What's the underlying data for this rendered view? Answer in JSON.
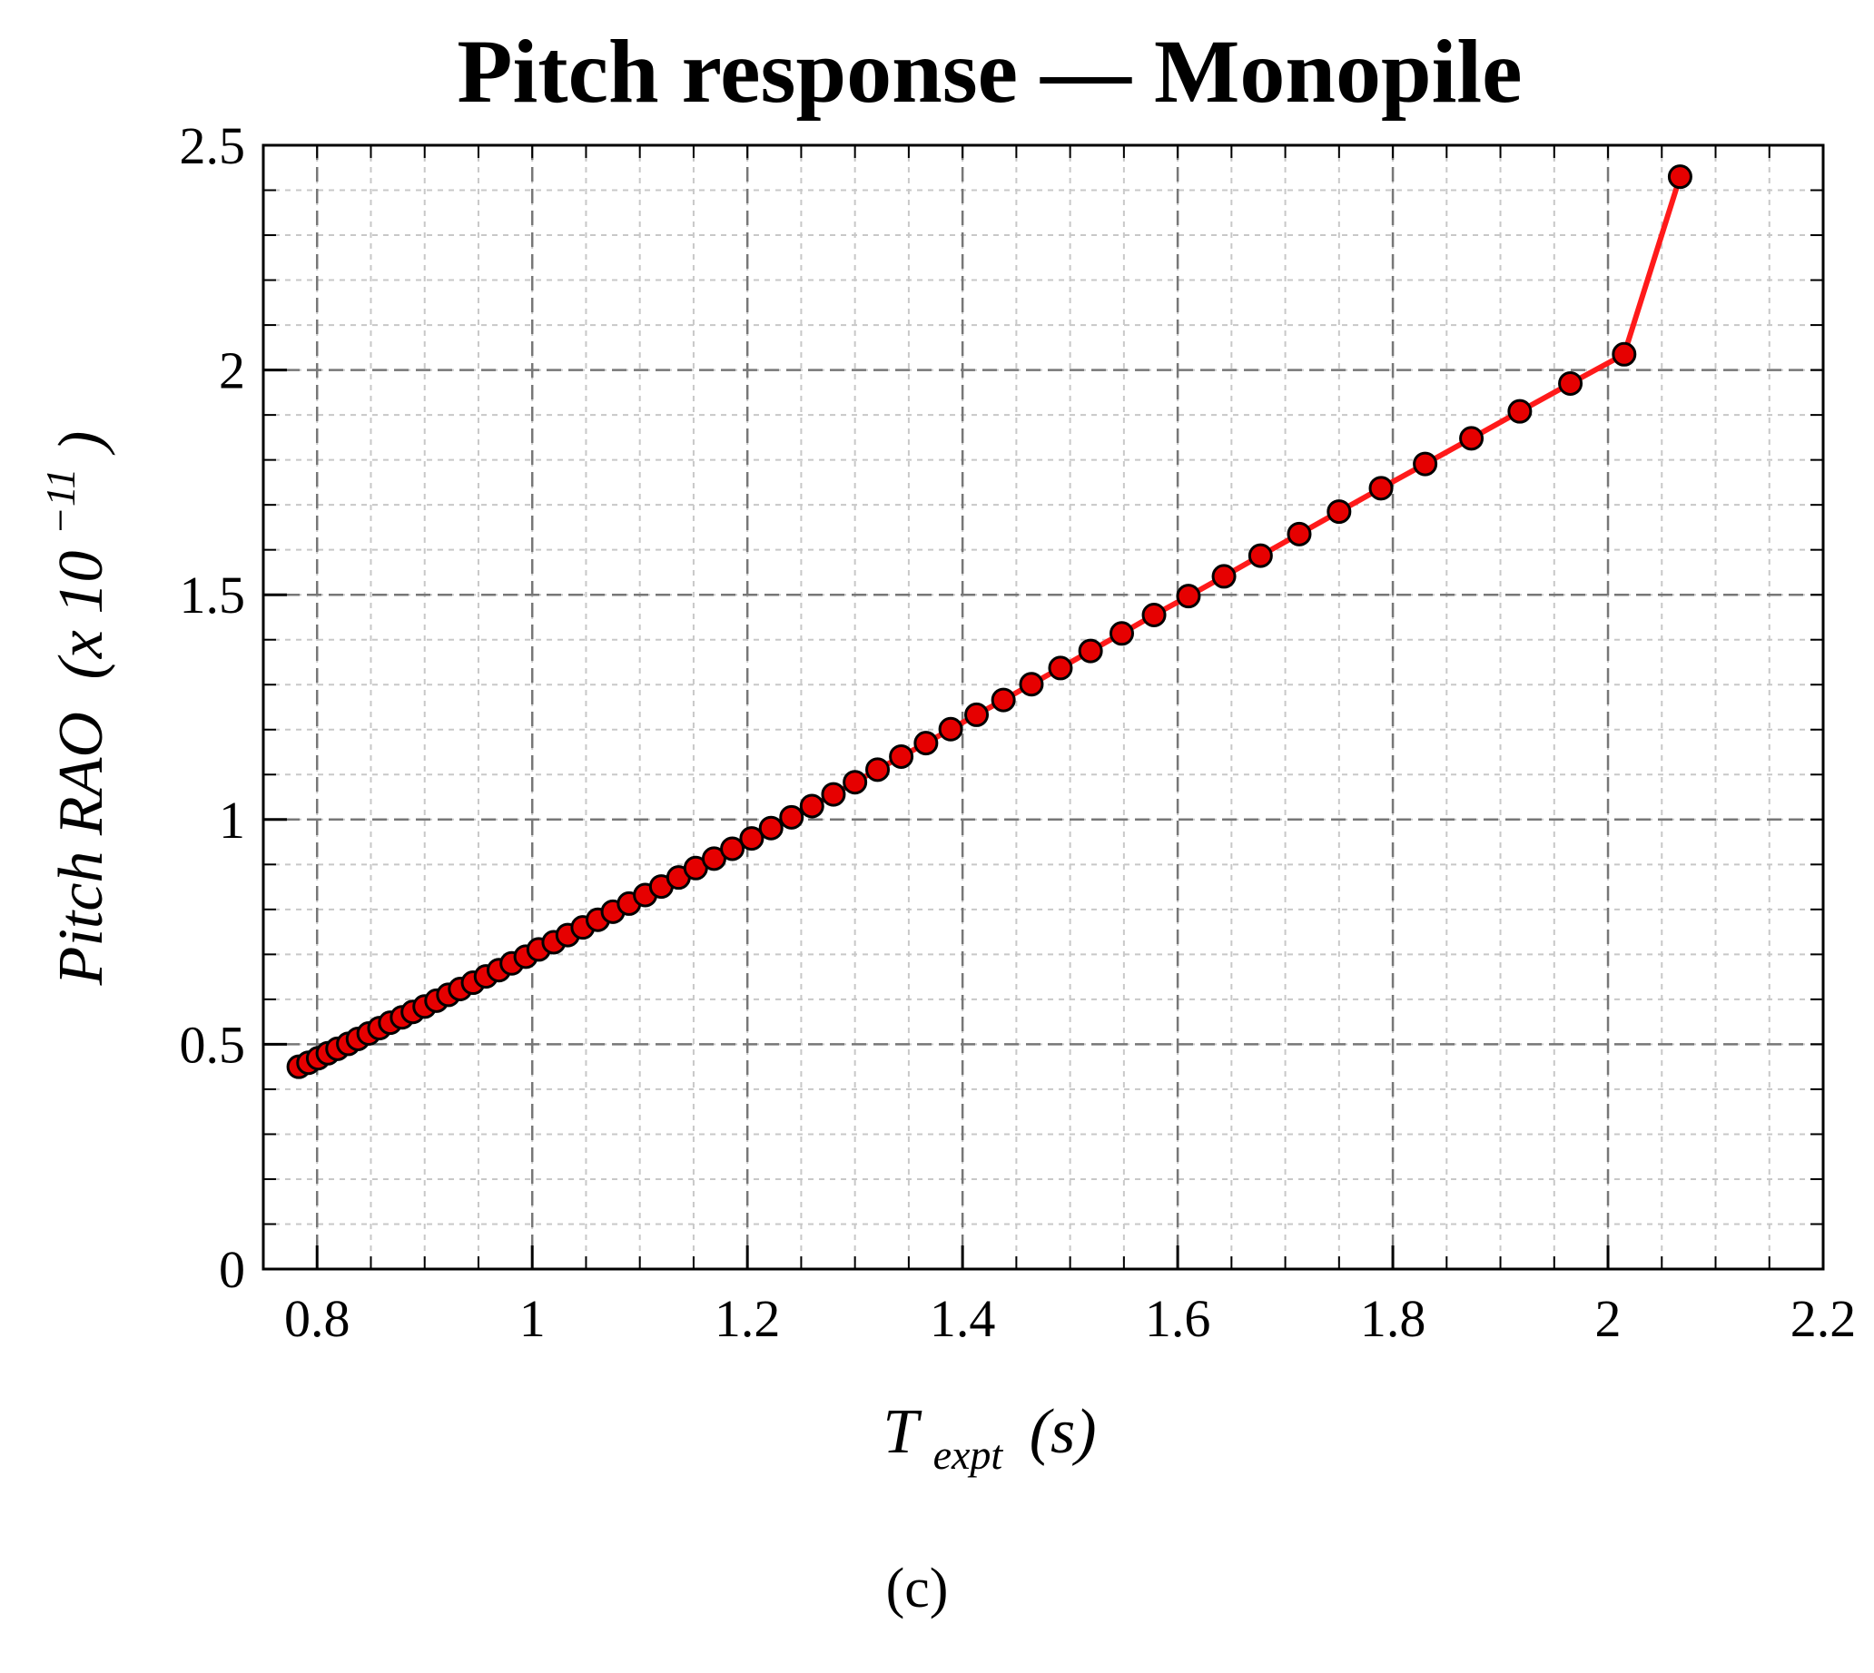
{
  "chart_data": {
    "type": "line",
    "title": "Pitch response — Monopile",
    "xlabel": {
      "main": "T",
      "subscript": "expt",
      "unit": "(s)"
    },
    "ylabel": {
      "main": "Pitch RAO",
      "unit_prefix": "(x 10",
      "exponent": "−11",
      "unit_suffix": ")"
    },
    "xlim": [
      0.75,
      2.2
    ],
    "ylim": [
      0,
      2.5
    ],
    "x_ticks": [
      0.8,
      1,
      1.2,
      1.4,
      1.6,
      1.8,
      2,
      2.2
    ],
    "x_tick_labels": [
      "0.8",
      "1",
      "1.2",
      "1.4",
      "1.6",
      "1.8",
      "2",
      "2.2"
    ],
    "y_ticks": [
      0,
      0.5,
      1,
      1.5,
      2,
      2.5
    ],
    "y_tick_labels": [
      "0",
      "0.5",
      "1",
      "1.5",
      "2",
      "2.5"
    ],
    "grid": true,
    "line_color": "#ff1a1a",
    "marker_fill": "#e60000",
    "marker_edge": "#000000",
    "series": [
      {
        "x": [
          0.783,
          0.792,
          0.801,
          0.81,
          0.819,
          0.829,
          0.838,
          0.848,
          0.858,
          0.868,
          0.879,
          0.889,
          0.9,
          0.911,
          0.922,
          0.933,
          0.945,
          0.957,
          0.969,
          0.981,
          0.994,
          1.006,
          1.02,
          1.033,
          1.047,
          1.061,
          1.075,
          1.09,
          1.105,
          1.12,
          1.136,
          1.152,
          1.169,
          1.186,
          1.204,
          1.222,
          1.241,
          1.26,
          1.28,
          1.3,
          1.321,
          1.343,
          1.366,
          1.389,
          1.413,
          1.438,
          1.464,
          1.491,
          1.519,
          1.548,
          1.578,
          1.61,
          1.643,
          1.677,
          1.713,
          1.75,
          1.789,
          1.83,
          1.873,
          1.918,
          1.965,
          2.015,
          2.067
        ],
        "y": [
          0.45,
          0.459,
          0.469,
          0.48,
          0.49,
          0.501,
          0.512,
          0.524,
          0.536,
          0.548,
          0.56,
          0.572,
          0.584,
          0.597,
          0.61,
          0.623,
          0.637,
          0.651,
          0.665,
          0.68,
          0.695,
          0.711,
          0.727,
          0.743,
          0.76,
          0.777,
          0.795,
          0.813,
          0.832,
          0.851,
          0.871,
          0.892,
          0.913,
          0.935,
          0.958,
          0.981,
          1.005,
          1.03,
          1.056,
          1.083,
          1.111,
          1.14,
          1.17,
          1.201,
          1.233,
          1.266,
          1.301,
          1.337,
          1.375,
          1.414,
          1.455,
          1.497,
          1.541,
          1.587,
          1.635,
          1.685,
          1.737,
          1.791,
          1.848,
          1.908,
          1.97,
          2.035,
          2.43
        ]
      }
    ]
  },
  "panel_label": "(c)"
}
